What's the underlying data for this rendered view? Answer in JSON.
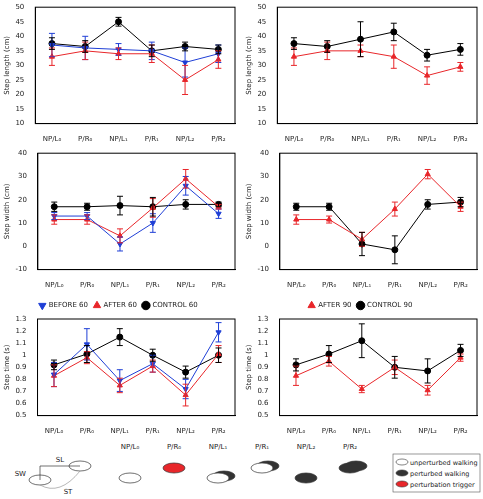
{
  "chart_data": [
    {
      "type": "line",
      "ylabel": "Step length (cm)",
      "categories": [
        "NP/L₀",
        "P/R₀",
        "NP/L₁",
        "P/R₁",
        "NP/L₂",
        "P/R₂"
      ],
      "ylim": [
        10,
        50
      ],
      "yticks": [
        10,
        15,
        20,
        25,
        30,
        35,
        40,
        45,
        50
      ],
      "grid": false,
      "series": [
        {
          "name": "BEFORE 60",
          "color": "#1f3fd6",
          "marker": "triangle-down",
          "values": [
            37,
            36,
            35.5,
            35,
            31,
            34
          ],
          "errors": [
            4,
            4,
            2,
            3,
            5,
            3
          ]
        },
        {
          "name": "AFTER 60",
          "color": "#e8262a",
          "marker": "triangle-up",
          "values": [
            33,
            35,
            34,
            34,
            25,
            32
          ],
          "errors": [
            3,
            3,
            2,
            3,
            5,
            3
          ]
        },
        {
          "name": "CONTROL 60",
          "color": "#000000",
          "marker": "circle",
          "values": [
            37.5,
            36.5,
            45,
            35,
            36.5,
            35.5
          ],
          "errors": [
            2,
            2,
            1.5,
            2,
            1.5,
            1.5
          ]
        }
      ]
    },
    {
      "type": "line",
      "ylabel": "Step length (cm)",
      "categories": [
        "NP/L₀",
        "P/R₀",
        "NP/L₁",
        "P/R₁",
        "NP/L₂",
        "P/R₂"
      ],
      "ylim": [
        10,
        50
      ],
      "yticks": [
        10,
        15,
        20,
        25,
        30,
        35,
        40,
        45,
        50
      ],
      "grid": false,
      "series": [
        {
          "name": "AFTER 90",
          "color": "#e8262a",
          "marker": "triangle-up",
          "values": [
            33,
            35,
            35,
            33,
            26.5,
            29.5
          ],
          "errors": [
            3,
            3,
            2,
            4,
            3,
            1.5
          ]
        },
        {
          "name": "CONTROL 90",
          "color": "#000000",
          "marker": "circle",
          "values": [
            37.5,
            36.5,
            39,
            41.5,
            33.5,
            35.5
          ],
          "errors": [
            2,
            2,
            6,
            3,
            2,
            2
          ]
        }
      ]
    },
    {
      "type": "line",
      "ylabel": "Step width (cm)",
      "categories": [
        "NP/L₀",
        "P/R₀",
        "NP/L₁",
        "P/R₁",
        "NP/L₂",
        "P/R₂"
      ],
      "ylim": [
        -10,
        40
      ],
      "yticks": [
        -10,
        0,
        10,
        20,
        30,
        40
      ],
      "grid": false,
      "series": [
        {
          "name": "BEFORE 60",
          "color": "#1f3fd6",
          "marker": "triangle-down",
          "values": [
            13,
            13,
            1,
            10,
            26,
            14
          ],
          "errors": [
            1.5,
            1.5,
            3,
            4,
            4,
            2
          ]
        },
        {
          "name": "AFTER 60",
          "color": "#e8262a",
          "marker": "triangle-up",
          "values": [
            11.5,
            11.5,
            4.5,
            16.5,
            29,
            17
          ],
          "errors": [
            2,
            2,
            3,
            4,
            4,
            1
          ]
        },
        {
          "name": "CONTROL 60",
          "color": "#000000",
          "marker": "circle",
          "values": [
            17,
            17,
            17.5,
            17,
            18,
            18
          ],
          "errors": [
            2,
            1.5,
            4,
            4,
            2,
            1
          ]
        }
      ]
    },
    {
      "type": "line",
      "ylabel": "Step width (cm)",
      "categories": [
        "NP/L₀",
        "P/R₀",
        "NP/L₁",
        "P/R₁",
        "NP/L₂",
        "P/R₂"
      ],
      "ylim": [
        -10,
        40
      ],
      "yticks": [
        -10,
        0,
        10,
        20,
        30,
        40
      ],
      "grid": false,
      "series": [
        {
          "name": "AFTER 90",
          "color": "#e8262a",
          "marker": "triangle-up",
          "values": [
            11.5,
            11.5,
            3,
            16,
            31,
            17
          ],
          "errors": [
            2,
            1.5,
            3,
            3,
            2,
            2
          ]
        },
        {
          "name": "CONTROL 90",
          "color": "#000000",
          "marker": "circle",
          "values": [
            17,
            17,
            1,
            -1.5,
            18,
            19
          ],
          "errors": [
            1.5,
            1.5,
            5,
            6,
            2,
            2
          ]
        }
      ]
    },
    {
      "type": "line",
      "ylabel": "Step time (s)",
      "legend": "top",
      "categories": [
        "NP/L₀",
        "P/R₀",
        "NP/L₁",
        "P/R₁",
        "NP/L₂",
        "P/R₂"
      ],
      "ylim": [
        0.5,
        1.3
      ],
      "yticks": [
        0.5,
        0.6,
        0.7,
        0.8,
        0.9,
        1,
        1.1,
        1.2,
        1.3
      ],
      "grid": false,
      "series": [
        {
          "name": "BEFORE 60",
          "color": "#1f3fd6",
          "marker": "triangle-down",
          "values": [
            0.84,
            1.09,
            0.79,
            0.93,
            0.72,
            1.19
          ],
          "errors": [
            0.1,
            0.13,
            0.09,
            0.07,
            0.08,
            0.08
          ]
        },
        {
          "name": "AFTER 60",
          "color": "#e8262a",
          "marker": "triangle-up",
          "values": [
            0.83,
            0.98,
            0.75,
            0.91,
            0.67,
            1.01
          ],
          "errors": [
            0.09,
            0.05,
            0.06,
            0.05,
            0.09,
            0.07
          ]
        },
        {
          "name": "CONTROL 60",
          "color": "#000000",
          "marker": "circle",
          "values": [
            0.92,
            1.01,
            1.15,
            1.0,
            0.86,
            1.0
          ],
          "errors": [
            0.04,
            0.07,
            0.07,
            0.05,
            0.05,
            0.06
          ]
        }
      ]
    },
    {
      "type": "line",
      "ylabel": "Step time (s)",
      "legend": "top",
      "categories": [
        "NP/L₀",
        "P/R₀",
        "NP/L₁",
        "P/R₁",
        "NP/L₂",
        "P/R₂"
      ],
      "ylim": [
        0.5,
        1.3
      ],
      "yticks": [
        0.5,
        0.6,
        0.7,
        0.8,
        0.9,
        1,
        1.1,
        1.2,
        1.3
      ],
      "grid": false,
      "series": [
        {
          "name": "AFTER 90",
          "color": "#e8262a",
          "marker": "triangle-up",
          "values": [
            0.83,
            0.95,
            0.72,
            0.9,
            0.71,
            0.98
          ],
          "errors": [
            0.08,
            0.04,
            0.03,
            0.06,
            0.04,
            0.03
          ]
        },
        {
          "name": "CONTROL 90",
          "color": "#000000",
          "marker": "circle",
          "values": [
            0.92,
            1.01,
            1.12,
            0.9,
            0.87,
            1.04
          ],
          "errors": [
            0.05,
            0.07,
            0.14,
            0.09,
            0.1,
            0.05
          ]
        }
      ]
    }
  ],
  "diagram": {
    "steps": [
      "NP/L₀",
      "P/R₀",
      "NP/L₁",
      "P/R₁",
      "NP/L₂",
      "P/R₂"
    ],
    "measures": [
      "SW",
      "SL",
      "ST"
    ],
    "key": [
      "unperturbed walking",
      "perturbed walking",
      "perturbation trigger"
    ]
  }
}
